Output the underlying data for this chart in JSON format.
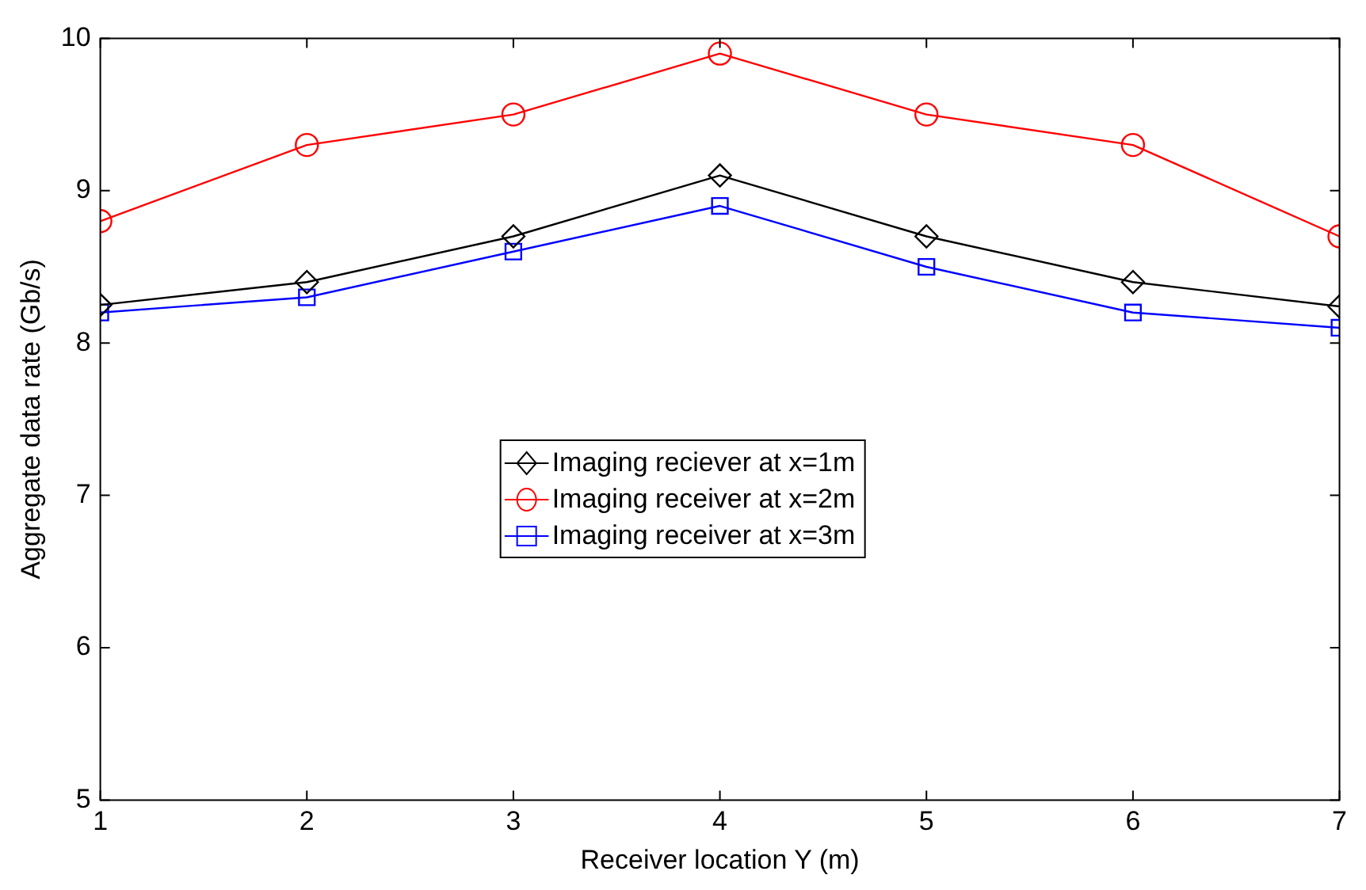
{
  "chart_data": {
    "type": "line",
    "xlabel": "Receiver location Y (m)",
    "ylabel": "Aggregate data rate (Gb/s)",
    "x": [
      1,
      2,
      3,
      4,
      5,
      6,
      7
    ],
    "series": [
      {
        "name": "Imaging reciever at x=1m",
        "color": "#000000",
        "marker": "diamond",
        "values": [
          8.25,
          8.4,
          8.7,
          9.1,
          8.7,
          8.4,
          8.24
        ]
      },
      {
        "name": "Imaging receiver at x=2m",
        "color": "#ff0000",
        "marker": "circle",
        "values": [
          8.8,
          9.3,
          9.5,
          9.9,
          9.5,
          9.3,
          8.7
        ]
      },
      {
        "name": "Imaging receiver at x=3m",
        "color": "#0000ff",
        "marker": "square",
        "values": [
          8.2,
          8.3,
          8.6,
          8.9,
          8.5,
          8.2,
          8.1
        ]
      }
    ],
    "xlim": [
      1,
      7
    ],
    "xticks": [
      1,
      2,
      3,
      4,
      5,
      6,
      7
    ],
    "ylim": [
      5,
      10
    ],
    "yticks": [
      5,
      6,
      7,
      8,
      9,
      10
    ],
    "grid": false,
    "legend": "center",
    "line_style": "solid"
  }
}
